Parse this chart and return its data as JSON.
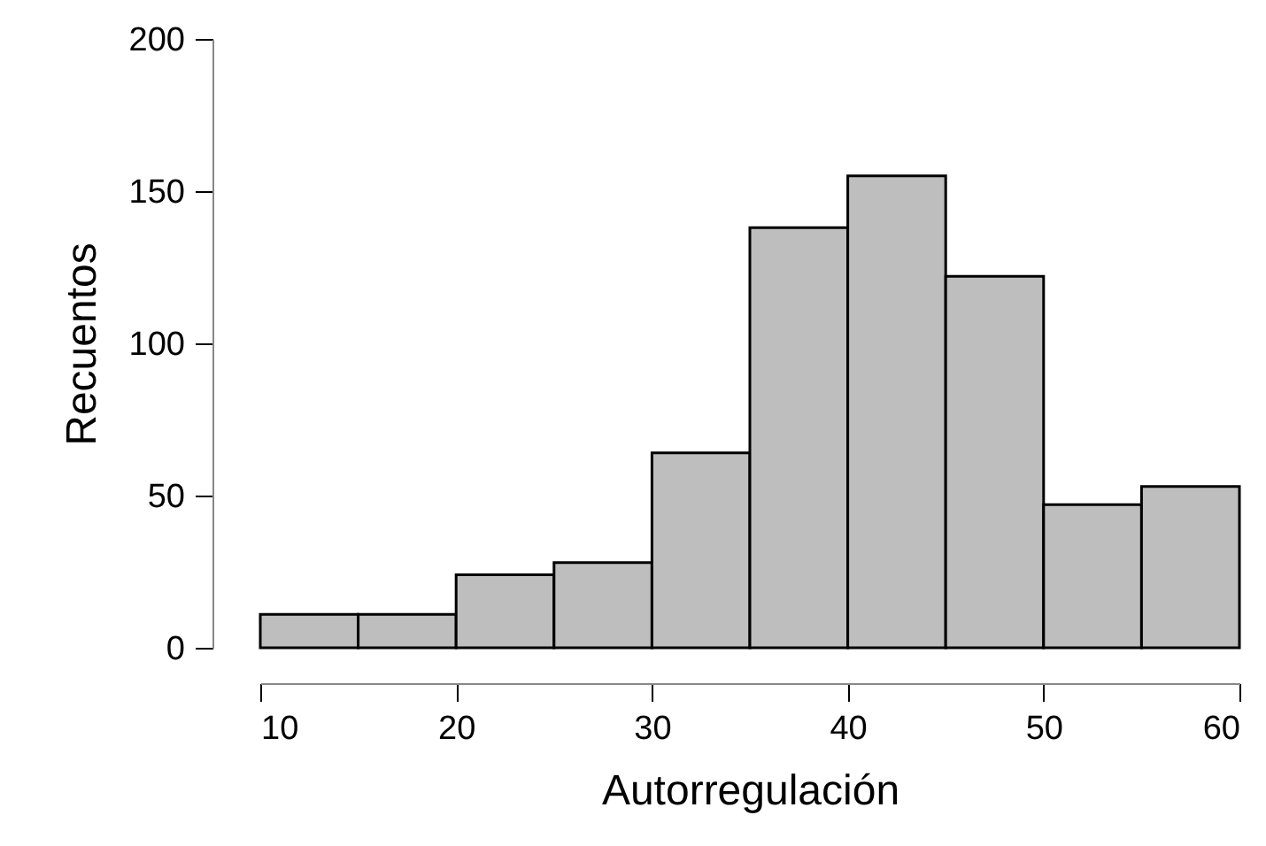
{
  "chart_data": {
    "type": "histogram",
    "xlabel": "Autorregulación",
    "ylabel": "Recuentos",
    "color": "#bebebe",
    "bins": [
      10,
      15,
      20,
      25,
      30,
      35,
      40,
      45,
      50,
      55,
      60
    ],
    "values": [
      11,
      11,
      24,
      28,
      64,
      138,
      155,
      122,
      47,
      53
    ],
    "xlim": [
      10,
      60
    ],
    "xticks": [
      10,
      20,
      30,
      40,
      50,
      60
    ],
    "ylim": [
      0,
      200
    ],
    "yticks": [
      0,
      50,
      100,
      150,
      200
    ],
    "grid": false
  }
}
